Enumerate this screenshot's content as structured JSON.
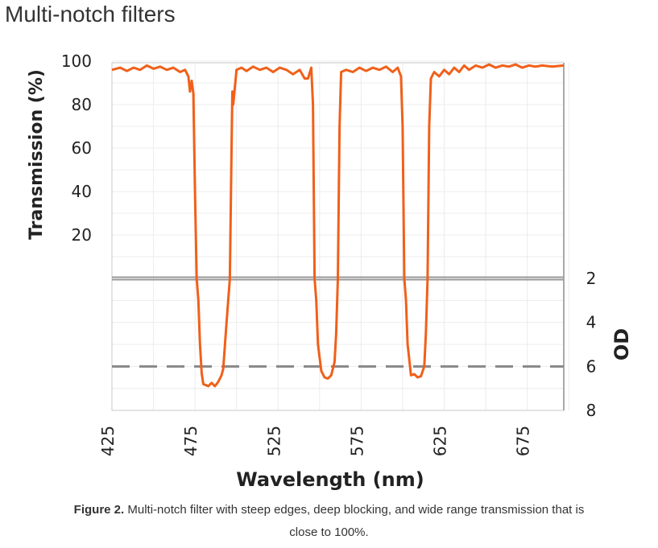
{
  "page_title": "Multi-notch filters",
  "caption": {
    "label": "Figure 2.",
    "text": " Multi-notch filter with steep edges, deep blocking, and wide range transmission that is",
    "text2": "close to 100%."
  },
  "chart_data": {
    "type": "line",
    "xlabel": "Wavelength (nm)",
    "ylabel_left": "Transmission (%)",
    "ylabel_right": "OD",
    "xlim": [
      425,
      697
    ],
    "x_ticks": [
      "425",
      "475",
      "525",
      "575",
      "625",
      "675"
    ],
    "y_left_ticks": [
      "100",
      "80",
      "60",
      "40",
      "20"
    ],
    "y_right_ticks": [
      "2",
      "4",
      "6",
      "8"
    ],
    "y_left_range": [
      0,
      100
    ],
    "y_right_range": [
      2,
      8
    ],
    "reference_lines": [
      {
        "style": "solid",
        "OD": 2
      },
      {
        "style": "dashed",
        "OD": 6
      }
    ],
    "color": "#f0601a",
    "series": [
      {
        "wl": 425,
        "T": 96
      },
      {
        "wl": 430,
        "T": 97
      },
      {
        "wl": 434,
        "T": 95.5
      },
      {
        "wl": 438,
        "T": 97
      },
      {
        "wl": 442,
        "T": 96
      },
      {
        "wl": 446,
        "T": 98
      },
      {
        "wl": 450,
        "T": 96.5
      },
      {
        "wl": 454,
        "T": 97.5
      },
      {
        "wl": 458,
        "T": 96
      },
      {
        "wl": 462,
        "T": 97
      },
      {
        "wl": 466,
        "T": 95
      },
      {
        "wl": 469,
        "T": 96
      },
      {
        "wl": 471,
        "T": 93
      },
      {
        "wl": 472,
        "T": 86
      },
      {
        "wl": 473,
        "T": 91
      },
      {
        "wl": 474,
        "T": 85
      },
      {
        "wl": 475,
        "T": 40
      },
      {
        "wl": 476,
        "T": 0
      },
      {
        "wl": 477,
        "OD": 3
      },
      {
        "wl": 478,
        "OD": 5
      },
      {
        "wl": 479,
        "OD": 6.3
      },
      {
        "wl": 480,
        "OD": 6.8
      },
      {
        "wl": 483,
        "OD": 6.9
      },
      {
        "wl": 485,
        "OD": 6.75
      },
      {
        "wl": 487,
        "OD": 6.9
      },
      {
        "wl": 489,
        "OD": 6.7
      },
      {
        "wl": 491,
        "OD": 6.4
      },
      {
        "wl": 492,
        "OD": 6.1
      },
      {
        "wl": 494,
        "OD": 4
      },
      {
        "wl": 495.5,
        "OD": 2.5
      },
      {
        "wl": 496,
        "OD": 2
      },
      {
        "wl": 497,
        "T": 60
      },
      {
        "wl": 497.5,
        "T": 86
      },
      {
        "wl": 498,
        "T": 80
      },
      {
        "wl": 499,
        "T": 88
      },
      {
        "wl": 500,
        "T": 96
      },
      {
        "wl": 503,
        "T": 97
      },
      {
        "wl": 506,
        "T": 95.5
      },
      {
        "wl": 510,
        "T": 97.5
      },
      {
        "wl": 514,
        "T": 96
      },
      {
        "wl": 518,
        "T": 97
      },
      {
        "wl": 522,
        "T": 95
      },
      {
        "wl": 526,
        "T": 97
      },
      {
        "wl": 530,
        "T": 96
      },
      {
        "wl": 534,
        "T": 94
      },
      {
        "wl": 538,
        "T": 96
      },
      {
        "wl": 541,
        "T": 92
      },
      {
        "wl": 543,
        "T": 92
      },
      {
        "wl": 545,
        "T": 97
      },
      {
        "wl": 546,
        "T": 80
      },
      {
        "wl": 547,
        "T": 0
      },
      {
        "wl": 548,
        "OD": 3
      },
      {
        "wl": 549,
        "OD": 5
      },
      {
        "wl": 551,
        "OD": 6.2
      },
      {
        "wl": 553,
        "OD": 6.5
      },
      {
        "wl": 555,
        "OD": 6.55
      },
      {
        "wl": 557,
        "OD": 6.4
      },
      {
        "wl": 559,
        "OD": 5.8
      },
      {
        "wl": 560,
        "OD": 4.5
      },
      {
        "wl": 561,
        "OD": 2
      },
      {
        "wl": 562,
        "T": 70
      },
      {
        "wl": 563,
        "T": 95
      },
      {
        "wl": 566,
        "T": 96
      },
      {
        "wl": 570,
        "T": 95
      },
      {
        "wl": 574,
        "T": 97
      },
      {
        "wl": 578,
        "T": 95.5
      },
      {
        "wl": 582,
        "T": 97
      },
      {
        "wl": 586,
        "T": 96
      },
      {
        "wl": 590,
        "T": 97.5
      },
      {
        "wl": 594,
        "T": 95
      },
      {
        "wl": 597,
        "T": 97
      },
      {
        "wl": 599,
        "T": 93
      },
      {
        "wl": 600,
        "T": 70
      },
      {
        "wl": 601,
        "T": 0
      },
      {
        "wl": 602,
        "OD": 3
      },
      {
        "wl": 603,
        "OD": 5
      },
      {
        "wl": 605,
        "OD": 6.4
      },
      {
        "wl": 607,
        "OD": 6.35
      },
      {
        "wl": 609,
        "OD": 6.5
      },
      {
        "wl": 611,
        "OD": 6.45
      },
      {
        "wl": 613,
        "OD": 6.0
      },
      {
        "wl": 614,
        "OD": 4.5
      },
      {
        "wl": 615,
        "OD": 2
      },
      {
        "wl": 616,
        "T": 70
      },
      {
        "wl": 617,
        "T": 92
      },
      {
        "wl": 619,
        "T": 95
      },
      {
        "wl": 622,
        "T": 93
      },
      {
        "wl": 625,
        "T": 96
      },
      {
        "wl": 628,
        "T": 94
      },
      {
        "wl": 631,
        "T": 97
      },
      {
        "wl": 634,
        "T": 95
      },
      {
        "wl": 637,
        "T": 98
      },
      {
        "wl": 640,
        "T": 96
      },
      {
        "wl": 644,
        "T": 98
      },
      {
        "wl": 648,
        "T": 97
      },
      {
        "wl": 652,
        "T": 98.5
      },
      {
        "wl": 656,
        "T": 97
      },
      {
        "wl": 660,
        "T": 98
      },
      {
        "wl": 664,
        "T": 97.5
      },
      {
        "wl": 668,
        "T": 98.5
      },
      {
        "wl": 672,
        "T": 97
      },
      {
        "wl": 676,
        "T": 98
      },
      {
        "wl": 680,
        "T": 97.5
      },
      {
        "wl": 684,
        "T": 98
      },
      {
        "wl": 690,
        "T": 97.5
      },
      {
        "wl": 697,
        "T": 98
      }
    ]
  }
}
